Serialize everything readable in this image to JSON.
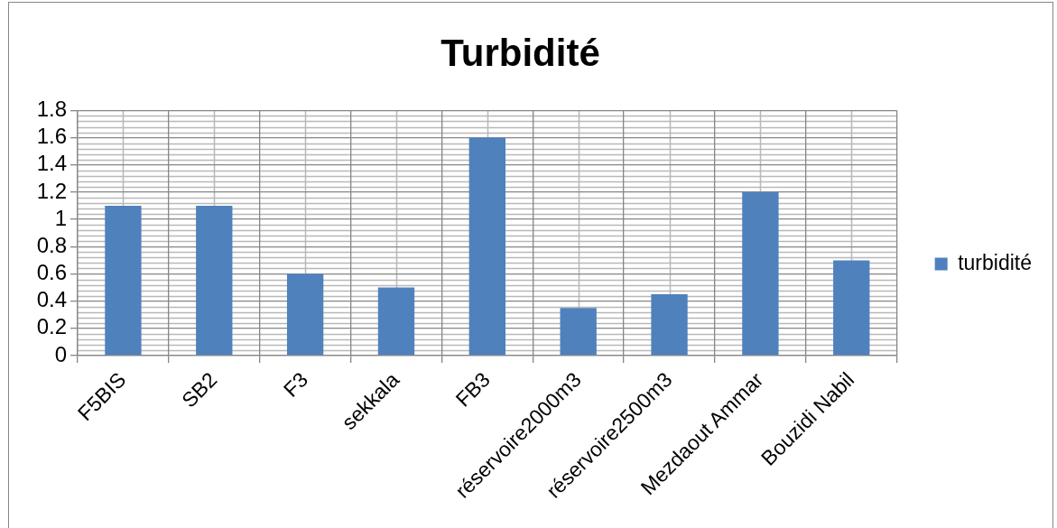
{
  "chart_data": {
    "type": "bar",
    "title": "Turbidité",
    "categories": [
      "F5BIS",
      "SB2",
      "F3",
      "sekkala",
      "FB3",
      "réservoire2000m3",
      "réservoire2500m3",
      "Mezdaout Ammar",
      "Bouzidi Nabil"
    ],
    "series": [
      {
        "name": "turbidité",
        "color": "#4f81bd",
        "values": [
          1.1,
          1.1,
          0.6,
          0.5,
          1.6,
          0.35,
          0.45,
          1.2,
          0.7
        ]
      }
    ],
    "ylim": [
      0,
      1.8
    ],
    "yticks": [
      0,
      0.2,
      0.4,
      0.6,
      0.8,
      1,
      1.2,
      1.4,
      1.6,
      1.8
    ],
    "grid": true,
    "legend": "right"
  }
}
